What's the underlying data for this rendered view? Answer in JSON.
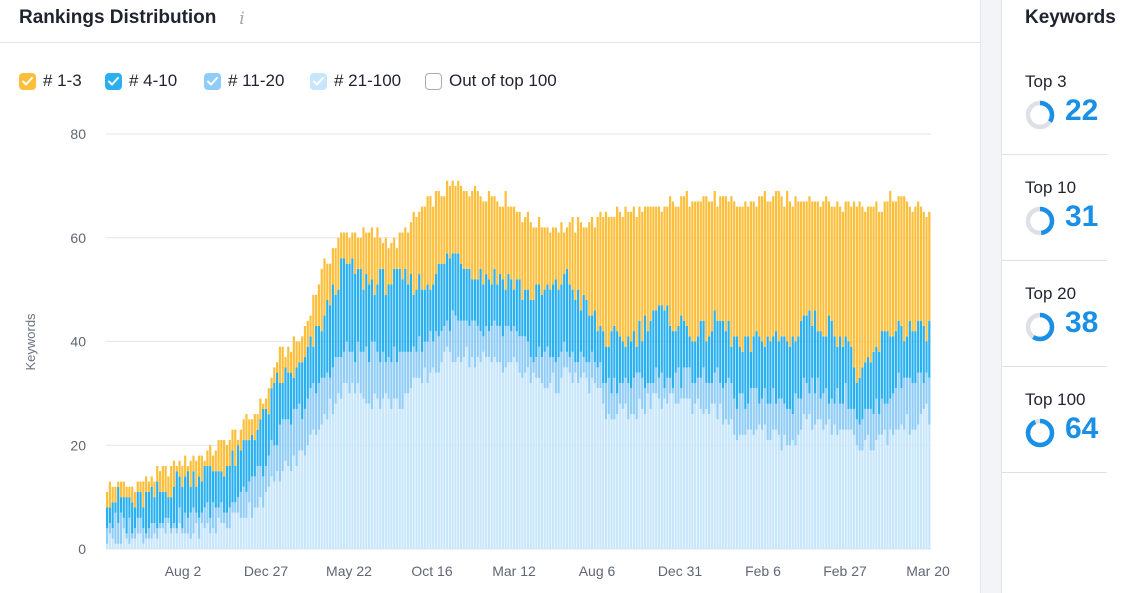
{
  "panel": {
    "title": "Rankings Distribution",
    "info_icon": "info-icon"
  },
  "legend": [
    {
      "label": "# 1-3",
      "color": "#fcbf3c",
      "checked": true
    },
    {
      "label": "# 4-10",
      "color": "#2ab0ef",
      "checked": true
    },
    {
      "label": "# 11-20",
      "color": "#8fccf6",
      "checked": true
    },
    {
      "label": "# 21-100",
      "color": "#c8e6fb",
      "checked": true
    },
    {
      "label": "Out of top 100",
      "color": "#ffffff",
      "checked": false
    }
  ],
  "chart_data": {
    "type": "bar",
    "stacked": true,
    "ylabel": "Keywords",
    "ylim": [
      0,
      80
    ],
    "yticks": [
      0,
      20,
      40,
      60,
      80
    ],
    "xticks": [
      "Aug 2",
      "Dec 27",
      "May 22",
      "Oct 16",
      "Mar 12",
      "Aug 6",
      "Dec 31",
      "Feb 6",
      "Feb 27",
      "Mar 20"
    ],
    "grid": true,
    "series_colors": {
      "top3": "#fcbf3c",
      "top4_10": "#2ab0ef",
      "top11_20": "#8fccf6",
      "top21_100": "#c8e6fb"
    },
    "anchors": {
      "x": [
        0,
        10,
        20,
        28,
        38,
        46,
        57,
        61,
        70,
        78,
        85,
        95,
        104,
        114,
        124,
        134,
        144,
        152,
        161,
        164,
        175,
        180,
        190,
        196,
        204,
        212,
        220,
        228,
        236,
        246,
        250,
        258,
        265,
        270,
        278,
        283,
        289,
        295
      ],
      "total": [
        12,
        12,
        15,
        17,
        19,
        22,
        29,
        37,
        41,
        55,
        61,
        61,
        59,
        66,
        70,
        69,
        67,
        63,
        62,
        62,
        63,
        65,
        65,
        65,
        67,
        68,
        67,
        66,
        68,
        67,
        68,
        67,
        66,
        67,
        66,
        68,
        66,
        65
      ],
      "top10": [
        10,
        9,
        11,
        14,
        15,
        17,
        26,
        32,
        35,
        45,
        55,
        51,
        52,
        51,
        57,
        53,
        52,
        49,
        50,
        53,
        44,
        40,
        41,
        46,
        44,
        41,
        44,
        38,
        41,
        40,
        45,
        43,
        41,
        32,
        40,
        43,
        42,
        42
      ],
      "top20": [
        5,
        5,
        5,
        6,
        8,
        10,
        16,
        22,
        27,
        33,
        38,
        38,
        37,
        40,
        44,
        42,
        42,
        38,
        37,
        38,
        36,
        32,
        32,
        33,
        33,
        34,
        33,
        28,
        30,
        28,
        32,
        30,
        30,
        25,
        28,
        32,
        33,
        33
      ],
      "top100": [
        2,
        2,
        3,
        3,
        4,
        6,
        10,
        14,
        18,
        26,
        31,
        29,
        28,
        33,
        38,
        36,
        36,
        33,
        32,
        33,
        32,
        25,
        27,
        28,
        29,
        28,
        26,
        21,
        23,
        20,
        25,
        23,
        24,
        20,
        21,
        23,
        24,
        26
      ]
    },
    "bar_count": 296
  },
  "right_panel": {
    "title": "Keywords",
    "stats": [
      {
        "label": "Top 3",
        "value": "22",
        "fraction": 0.34
      },
      {
        "label": "Top 10",
        "value": "31",
        "fraction": 0.48
      },
      {
        "label": "Top 20",
        "value": "38",
        "fraction": 0.59
      },
      {
        "label": "Top 100",
        "value": "64",
        "fraction": 0.93
      }
    ],
    "donut_color": "#1a8fe6",
    "donut_track": "#dde0e6"
  }
}
